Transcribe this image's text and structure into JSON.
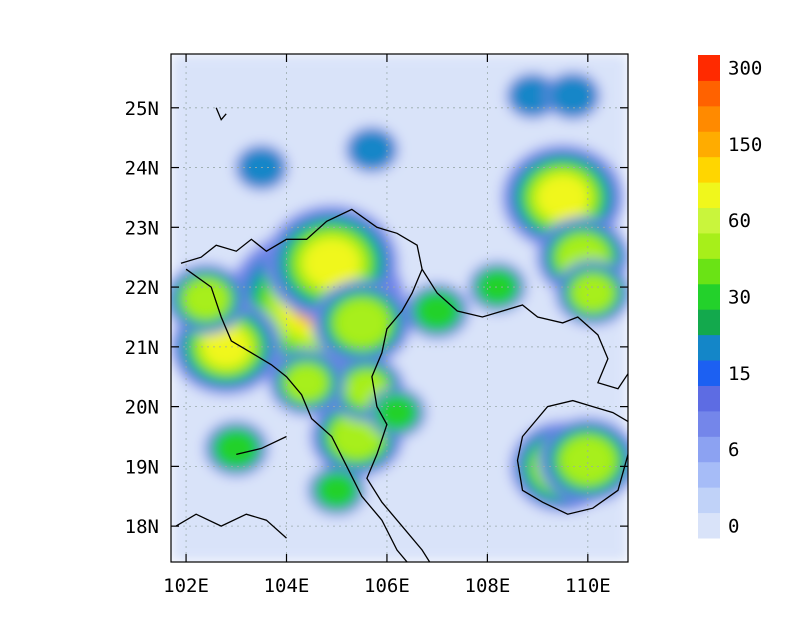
{
  "chart_data": {
    "type": "heatmap",
    "title": "",
    "xlabel": "",
    "ylabel": "",
    "x_range": [
      101.7,
      110.8
    ],
    "y_range": [
      17.4,
      25.9
    ],
    "x_ticks": [
      {
        "value": 102,
        "label": "102E"
      },
      {
        "value": 104,
        "label": "104E"
      },
      {
        "value": 106,
        "label": "106E"
      },
      {
        "value": 108,
        "label": "108E"
      },
      {
        "value": 110,
        "label": "110E"
      }
    ],
    "y_ticks": [
      {
        "value": 18,
        "label": "18N"
      },
      {
        "value": 19,
        "label": "19N"
      },
      {
        "value": 20,
        "label": "20N"
      },
      {
        "value": 21,
        "label": "21N"
      },
      {
        "value": 22,
        "label": "22N"
      },
      {
        "value": 23,
        "label": "23N"
      },
      {
        "value": 24,
        "label": "24N"
      },
      {
        "value": 25,
        "label": "25N"
      }
    ],
    "grid": true,
    "colorbar": {
      "placement": "right",
      "labels": [
        "0",
        "6",
        "15",
        "30",
        "60",
        "150",
        "300"
      ],
      "colors": [
        "#d9e3f9",
        "#c0d2f8",
        "#a6bcf7",
        "#8ca2f2",
        "#7486ea",
        "#5d6ce3",
        "#1c60f2",
        "#1486c8",
        "#13a94d",
        "#23d12b",
        "#6ae315",
        "#a7ef1a",
        "#c9f53c",
        "#f0f71c",
        "#ffd600",
        "#ffac00",
        "#ff8a00",
        "#ff6200",
        "#ff2a00"
      ]
    },
    "hotspots": [
      {
        "lon": 104.6,
        "lat": 21.7,
        "value": 120
      },
      {
        "lon": 104.9,
        "lat": 22.4,
        "value": 80
      },
      {
        "lon": 105.5,
        "lat": 21.4,
        "value": 50
      },
      {
        "lon": 102.8,
        "lat": 21.0,
        "value": 60
      },
      {
        "lon": 102.4,
        "lat": 21.8,
        "value": 35
      },
      {
        "lon": 105.4,
        "lat": 19.5,
        "value": 45
      },
      {
        "lon": 105.6,
        "lat": 20.3,
        "value": 30
      },
      {
        "lon": 104.4,
        "lat": 20.4,
        "value": 30
      },
      {
        "lon": 109.5,
        "lat": 23.5,
        "value": 70
      },
      {
        "lon": 109.9,
        "lat": 22.5,
        "value": 45
      },
      {
        "lon": 110.1,
        "lat": 21.9,
        "value": 30
      },
      {
        "lon": 109.5,
        "lat": 19.0,
        "value": 55
      },
      {
        "lon": 110.0,
        "lat": 19.1,
        "value": 50
      },
      {
        "lon": 108.2,
        "lat": 22.0,
        "value": 15
      },
      {
        "lon": 107.0,
        "lat": 21.6,
        "value": 20
      },
      {
        "lon": 103.0,
        "lat": 19.3,
        "value": 20
      },
      {
        "lon": 105.0,
        "lat": 18.6,
        "value": 15
      },
      {
        "lon": 106.2,
        "lat": 19.9,
        "value": 15
      },
      {
        "lon": 108.9,
        "lat": 25.2,
        "value": 10
      },
      {
        "lon": 109.7,
        "lat": 25.2,
        "value": 12
      },
      {
        "lon": 103.5,
        "lat": 24.0,
        "value": 10
      },
      {
        "lon": 105.7,
        "lat": 24.3,
        "value": 10
      }
    ],
    "coastline": [
      [
        101.9,
        22.4
      ],
      [
        102.3,
        22.5
      ],
      [
        102.6,
        22.7
      ],
      [
        103.0,
        22.6
      ],
      [
        103.3,
        22.8
      ],
      [
        103.6,
        22.6
      ],
      [
        104.0,
        22.8
      ],
      [
        104.4,
        22.8
      ],
      [
        104.8,
        23.1
      ],
      [
        105.3,
        23.3
      ],
      [
        105.8,
        23.0
      ],
      [
        106.2,
        22.9
      ],
      [
        106.6,
        22.7
      ],
      [
        106.7,
        22.3
      ],
      [
        107.0,
        21.9
      ],
      [
        107.4,
        21.6
      ],
      [
        107.9,
        21.5
      ],
      [
        108.3,
        21.6
      ],
      [
        108.7,
        21.7
      ],
      [
        109.0,
        21.5
      ],
      [
        109.5,
        21.4
      ],
      [
        109.8,
        21.5
      ],
      [
        110.2,
        21.2
      ],
      [
        110.4,
        20.8
      ],
      [
        110.2,
        20.4
      ],
      [
        110.6,
        20.3
      ],
      [
        111.0,
        20.8
      ]
    ],
    "vietnam_coast": [
      [
        106.7,
        22.3
      ],
      [
        106.5,
        21.9
      ],
      [
        106.3,
        21.6
      ],
      [
        106.0,
        21.3
      ],
      [
        105.9,
        20.9
      ],
      [
        105.7,
        20.5
      ],
      [
        105.8,
        20.0
      ],
      [
        106.0,
        19.7
      ],
      [
        105.8,
        19.2
      ],
      [
        105.6,
        18.8
      ],
      [
        105.9,
        18.4
      ],
      [
        106.3,
        18.0
      ],
      [
        106.7,
        17.6
      ],
      [
        107.0,
        17.2
      ]
    ],
    "hainan": [
      [
        108.7,
        19.5
      ],
      [
        109.2,
        20.0
      ],
      [
        109.7,
        20.1
      ],
      [
        110.1,
        20.0
      ],
      [
        110.5,
        19.9
      ],
      [
        110.9,
        19.7
      ],
      [
        110.8,
        19.2
      ],
      [
        110.6,
        18.6
      ],
      [
        110.1,
        18.3
      ],
      [
        109.6,
        18.2
      ],
      [
        109.1,
        18.4
      ],
      [
        108.7,
        18.6
      ],
      [
        108.6,
        19.1
      ],
      [
        108.7,
        19.5
      ]
    ],
    "borders": [
      [
        [
          102.0,
          22.3
        ],
        [
          102.5,
          22.0
        ],
        [
          102.7,
          21.5
        ],
        [
          102.9,
          21.1
        ],
        [
          103.3,
          20.9
        ],
        [
          103.7,
          20.7
        ],
        [
          104.0,
          20.5
        ],
        [
          104.3,
          20.2
        ],
        [
          104.5,
          19.8
        ],
        [
          104.9,
          19.5
        ],
        [
          105.2,
          19.0
        ],
        [
          105.5,
          18.5
        ],
        [
          105.9,
          18.1
        ],
        [
          106.2,
          17.6
        ],
        [
          106.6,
          17.2
        ]
      ],
      [
        [
          101.8,
          18.0
        ],
        [
          102.2,
          18.2
        ],
        [
          102.7,
          18.0
        ],
        [
          103.2,
          18.2
        ],
        [
          103.6,
          18.1
        ],
        [
          104.0,
          17.8
        ]
      ],
      [
        [
          103.0,
          19.2
        ],
        [
          103.5,
          19.3
        ],
        [
          104.0,
          19.5
        ]
      ],
      [
        [
          102.6,
          25.0
        ],
        [
          102.7,
          24.8
        ],
        [
          102.8,
          24.9
        ]
      ]
    ]
  }
}
